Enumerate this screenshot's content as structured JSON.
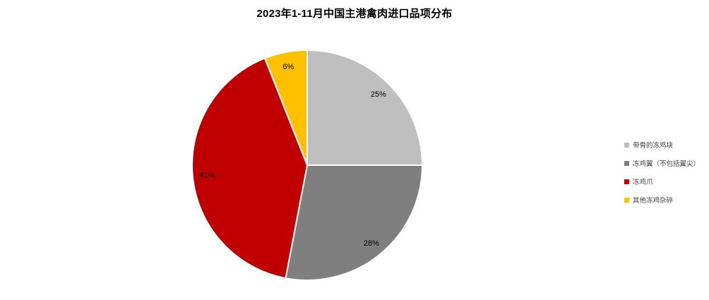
{
  "chart_data": {
    "type": "pie",
    "title": "2023年1-11月中国主港禽肉进口品项分布",
    "start_angle_deg": 0,
    "direction": "clockwise",
    "legend_position": "right",
    "labels_color": "#000000",
    "slice_border_color": "#ffffff",
    "slices": [
      {
        "label": "带骨的冻鸡块",
        "value": 25,
        "percent_label": "25%",
        "color": "#BFBFBF"
      },
      {
        "label": "冻鸡翼（不包括翼尖）",
        "value": 28,
        "percent_label": "28%",
        "color": "#7F7F7F"
      },
      {
        "label": "冻鸡爪",
        "value": 41,
        "percent_label": "41%",
        "color": "#C00000"
      },
      {
        "label": "其他冻鸡杂碎",
        "value": 6,
        "percent_label": "6%",
        "color": "#FFC000"
      }
    ]
  }
}
